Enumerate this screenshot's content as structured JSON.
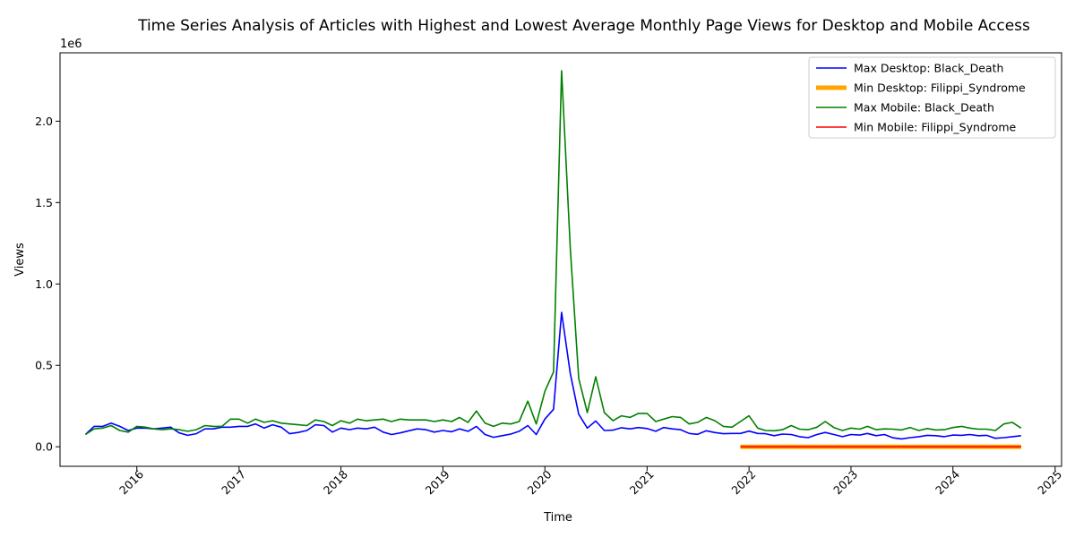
{
  "chart_data": {
    "type": "line",
    "title": "Time Series Analysis of Articles with Highest and Lowest Average Monthly Page Views for Desktop and Mobile Access",
    "xlabel": "Time",
    "ylabel": "Views",
    "y_multiplier_label": "1e6",
    "xlim": [
      "2015-04-01",
      "2025-01-24"
    ],
    "ylim": [
      -120000,
      2420000
    ],
    "x_ticks": [
      "2016",
      "2017",
      "2018",
      "2019",
      "2020",
      "2021",
      "2022",
      "2023",
      "2024",
      "2025"
    ],
    "y_ticks": [
      {
        "value": 0,
        "label": "0.0"
      },
      {
        "value": 500000,
        "label": "0.5"
      },
      {
        "value": 1000000,
        "label": "1.0"
      },
      {
        "value": 1500000,
        "label": "1.5"
      },
      {
        "value": 2000000,
        "label": "2.0"
      }
    ],
    "grid": false,
    "legend_position": "top-right",
    "series": [
      {
        "name": "Max Desktop: Black_Death",
        "color": "#0000ff",
        "linewidth": 1.6,
        "start": "2015-07-01",
        "values": [
          75000,
          125000,
          125000,
          145000,
          125000,
          100000,
          115000,
          115000,
          110000,
          115000,
          120000,
          85000,
          70000,
          80000,
          110000,
          110000,
          120000,
          120000,
          125000,
          125000,
          140000,
          115000,
          135000,
          120000,
          80000,
          88000,
          100000,
          135000,
          130000,
          90000,
          115000,
          105000,
          115000,
          110000,
          120000,
          90000,
          75000,
          85000,
          98000,
          110000,
          105000,
          90000,
          100000,
          92000,
          110000,
          95000,
          125000,
          75000,
          58000,
          68000,
          78000,
          95000,
          130000,
          75000,
          170000,
          230000,
          825000,
          450000,
          200000,
          115000,
          158000,
          100000,
          102000,
          117000,
          110000,
          118000,
          112000,
          95000,
          118000,
          110000,
          105000,
          82000,
          76000,
          98000,
          87000,
          80000,
          82000,
          82000,
          96000,
          82000,
          80000,
          68000,
          78000,
          75000,
          62000,
          56000,
          75000,
          88000,
          75000,
          62000,
          75000,
          72000,
          82000,
          68000,
          75000,
          55000,
          48000,
          56000,
          62000,
          70000,
          68000,
          62000,
          72000,
          70000,
          75000,
          68000,
          70000,
          52000,
          56000,
          62000,
          68000
        ]
      },
      {
        "name": "Min Desktop: Filippi_Syndrome",
        "color": "#ffa500",
        "linewidth": 5,
        "start": "2021-12-01",
        "values": [
          2,
          3,
          2,
          2,
          3,
          2,
          2,
          3,
          2,
          2,
          3,
          2,
          2,
          3,
          2,
          2,
          3,
          2,
          2,
          3,
          2,
          2,
          3,
          2,
          2,
          3,
          2,
          2,
          3,
          2,
          2,
          3,
          2,
          2
        ]
      },
      {
        "name": "Max Mobile: Black_Death",
        "color": "#008000",
        "linewidth": 1.6,
        "start": "2015-07-01",
        "values": [
          75000,
          110000,
          115000,
          130000,
          100000,
          90000,
          125000,
          120000,
          110000,
          105000,
          110000,
          105000,
          95000,
          105000,
          130000,
          125000,
          125000,
          170000,
          170000,
          145000,
          170000,
          150000,
          160000,
          145000,
          140000,
          135000,
          130000,
          165000,
          155000,
          130000,
          160000,
          145000,
          170000,
          160000,
          165000,
          170000,
          155000,
          170000,
          165000,
          165000,
          165000,
          155000,
          165000,
          155000,
          180000,
          150000,
          220000,
          145000,
          125000,
          145000,
          140000,
          155000,
          280000,
          140000,
          340000,
          460000,
          2310000,
          1220000,
          420000,
          210000,
          430000,
          210000,
          160000,
          190000,
          180000,
          205000,
          205000,
          155000,
          170000,
          185000,
          180000,
          140000,
          150000,
          180000,
          160000,
          125000,
          120000,
          155000,
          190000,
          115000,
          100000,
          98000,
          105000,
          130000,
          108000,
          105000,
          120000,
          155000,
          118000,
          100000,
          115000,
          108000,
          125000,
          105000,
          110000,
          108000,
          103000,
          118000,
          100000,
          112000,
          103000,
          105000,
          118000,
          125000,
          115000,
          108000,
          108000,
          100000,
          140000,
          150000,
          115000
        ]
      },
      {
        "name": "Min Mobile: Filippi_Syndrome",
        "color": "#ff0000",
        "linewidth": 1.6,
        "start": "2021-12-01",
        "values": [
          3,
          4,
          3,
          3,
          4,
          3,
          3,
          4,
          3,
          3,
          4,
          3,
          3,
          4,
          3,
          3,
          4,
          3,
          3,
          4,
          3,
          3,
          4,
          3,
          3,
          4,
          3,
          3,
          4,
          3,
          3,
          4,
          3,
          3
        ]
      }
    ]
  }
}
